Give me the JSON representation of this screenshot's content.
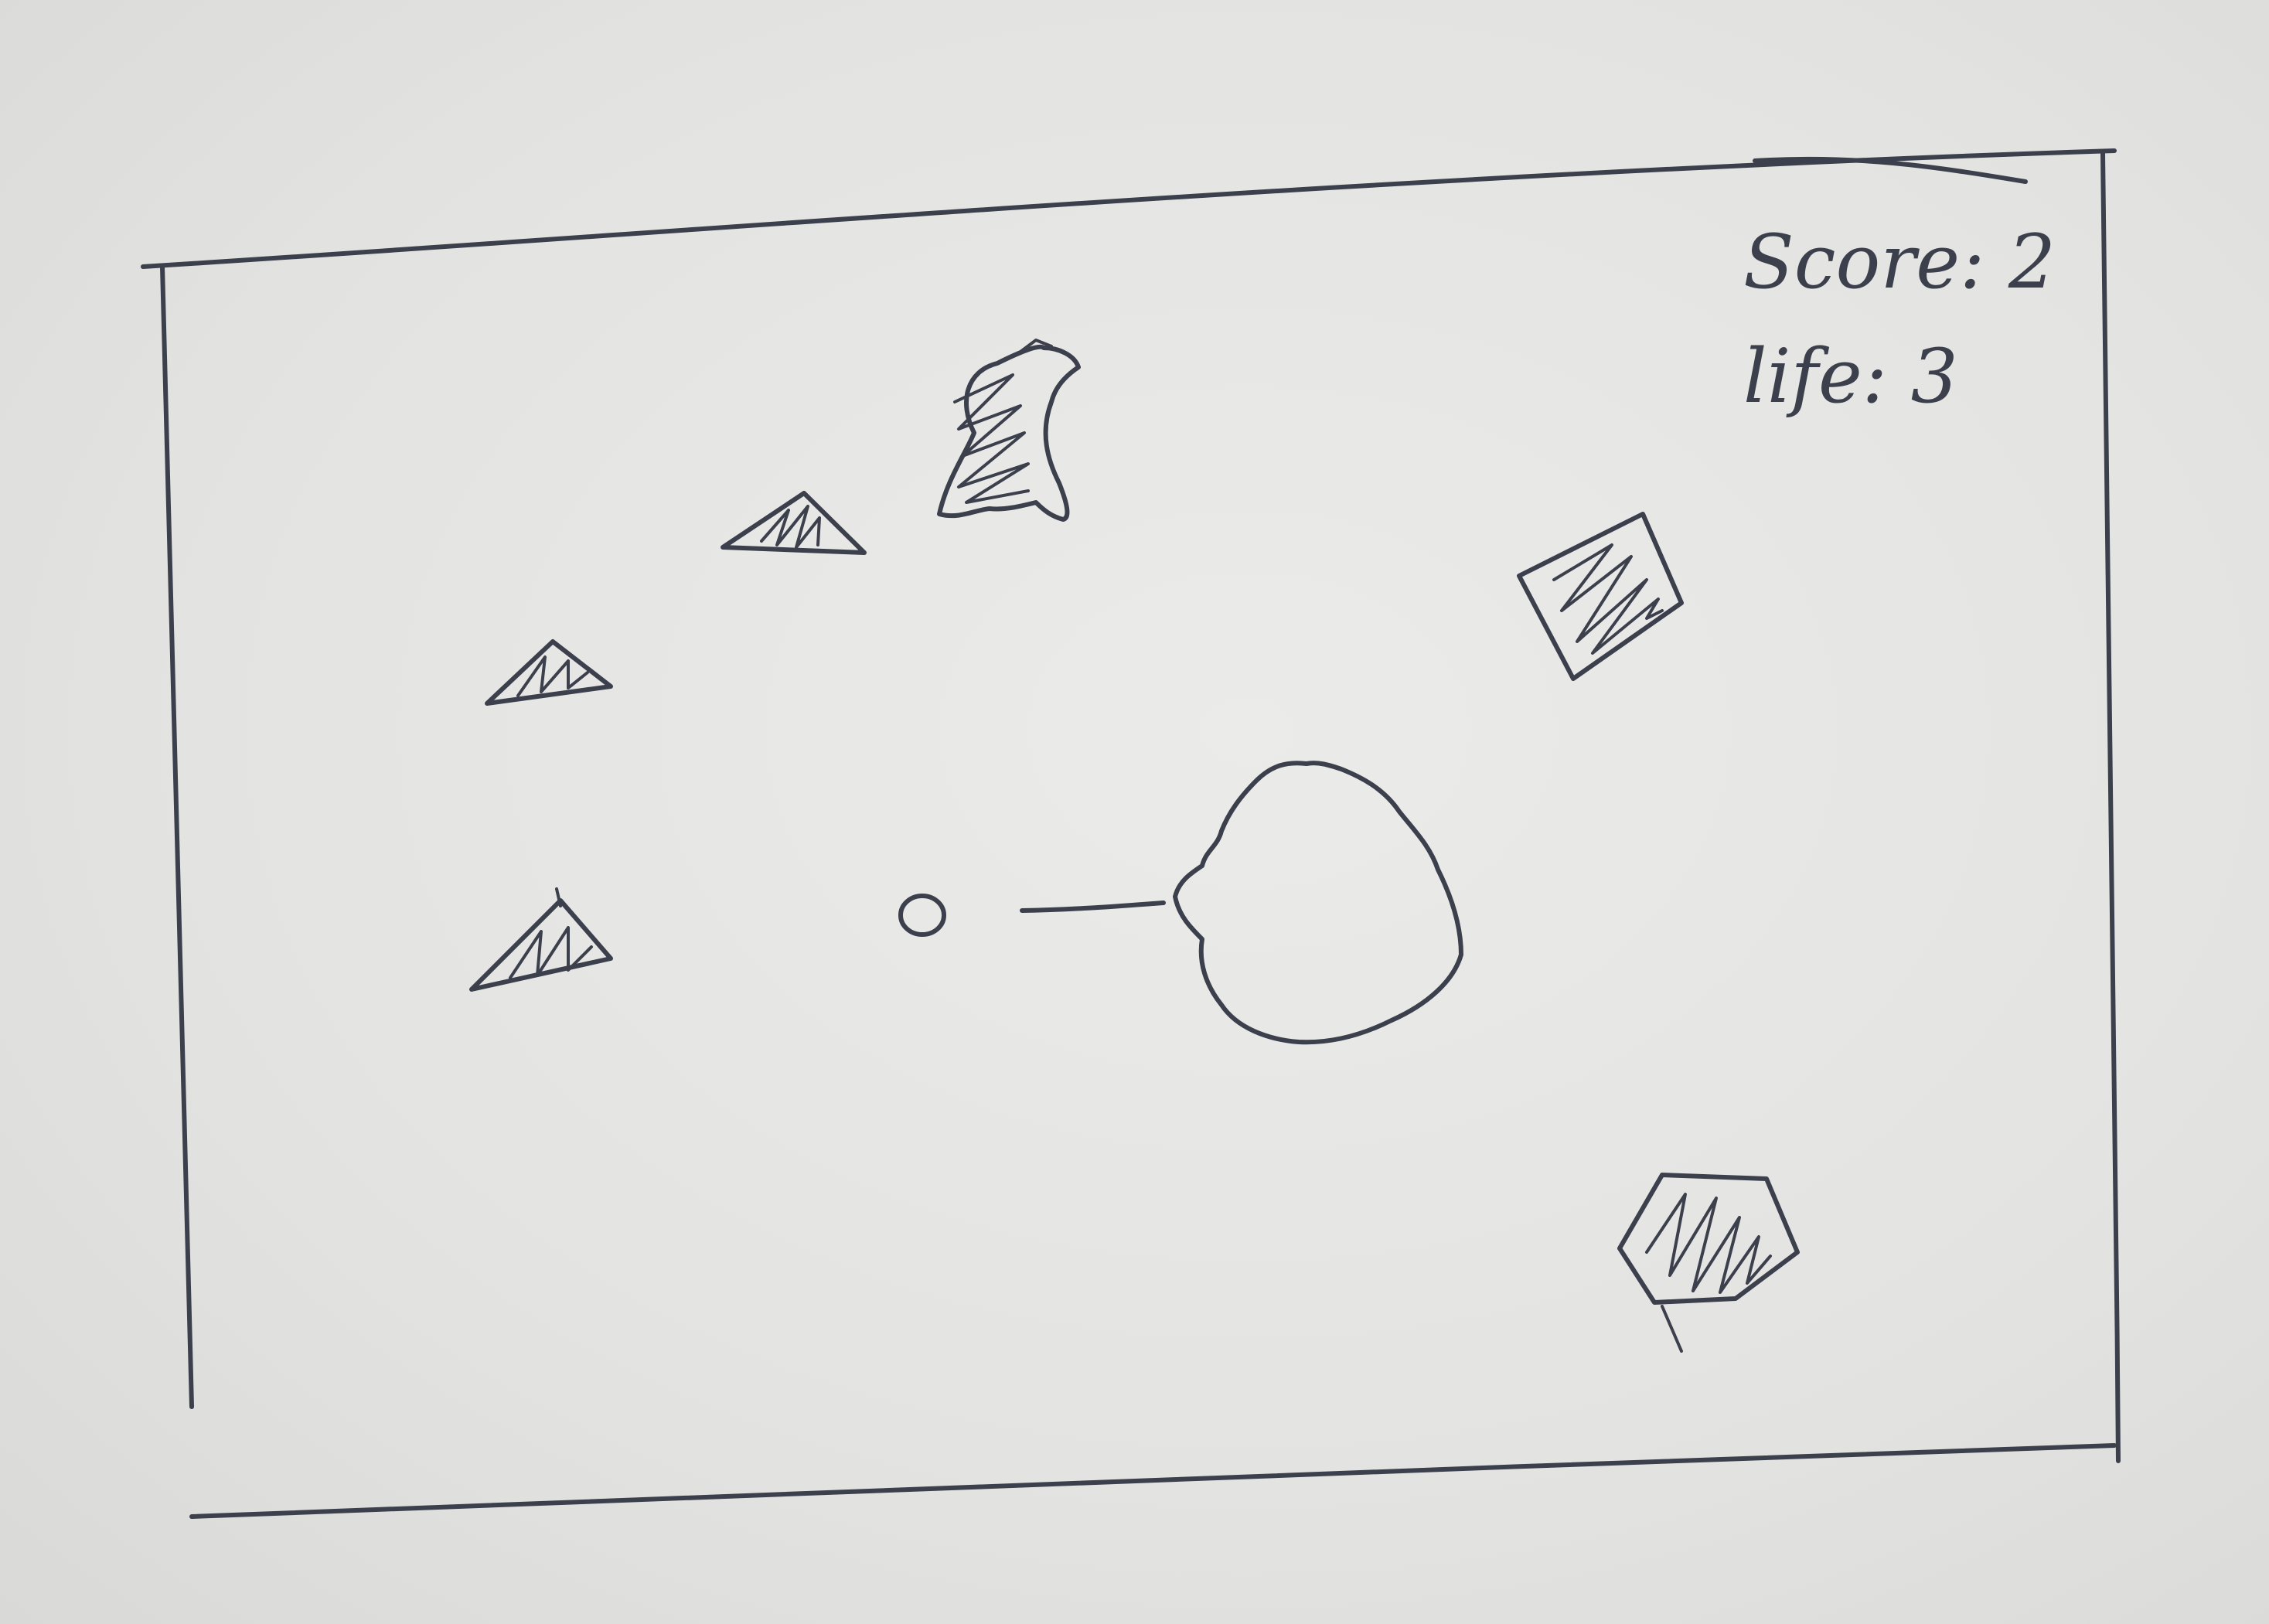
{
  "hud": {
    "score_label": "Score:",
    "score_value": "2",
    "life_label": "life:",
    "life_value": "3"
  },
  "ink_color": "#3c3f4c",
  "paper_color": "#e3e3e1"
}
